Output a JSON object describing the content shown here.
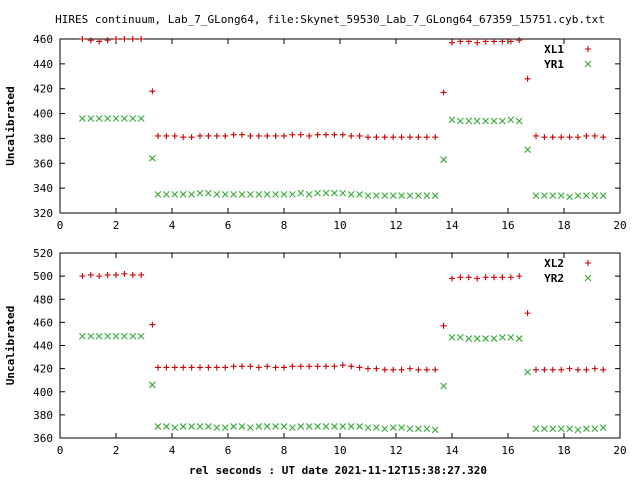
{
  "figure_title": "HIRES continuum, Lab_7_GLong64, file:Skynet_59530_Lab_7_GLong64_67359_15751.cyb.txt",
  "xlabel": "rel seconds : UT date 2021-11-12T15:38:27.320",
  "colors": {
    "series1": "#cc0000",
    "series2": "#33aa33",
    "frame": "#000000"
  },
  "chart_data": [
    {
      "type": "scatter",
      "ylabel": "Uncalibrated",
      "xlim": [
        0,
        20
      ],
      "ylim": [
        320,
        460
      ],
      "xticks": [
        0,
        2,
        4,
        6,
        8,
        10,
        12,
        14,
        16,
        18,
        20
      ],
      "yticks": [
        320,
        340,
        360,
        380,
        400,
        420,
        440,
        460
      ],
      "grid": false,
      "legend_position": "top-right",
      "series": [
        {
          "name": "XL1",
          "marker": "plus",
          "points": [
            [
              0.8,
              460
            ],
            [
              1.1,
              459
            ],
            [
              1.4,
              458
            ],
            [
              1.7,
              459
            ],
            [
              2.0,
              460
            ],
            [
              2.3,
              460
            ],
            [
              2.6,
              460
            ],
            [
              2.9,
              460
            ],
            [
              3.3,
              418
            ],
            [
              3.5,
              382
            ],
            [
              3.8,
              382
            ],
            [
              4.1,
              382
            ],
            [
              4.4,
              381
            ],
            [
              4.7,
              381
            ],
            [
              5.0,
              382
            ],
            [
              5.3,
              382
            ],
            [
              5.6,
              382
            ],
            [
              5.9,
              382
            ],
            [
              6.2,
              383
            ],
            [
              6.5,
              383
            ],
            [
              6.8,
              382
            ],
            [
              7.1,
              382
            ],
            [
              7.4,
              382
            ],
            [
              7.7,
              382
            ],
            [
              8.0,
              382
            ],
            [
              8.3,
              383
            ],
            [
              8.6,
              383
            ],
            [
              8.9,
              382
            ],
            [
              9.2,
              383
            ],
            [
              9.5,
              383
            ],
            [
              9.8,
              383
            ],
            [
              10.1,
              383
            ],
            [
              10.4,
              382
            ],
            [
              10.7,
              382
            ],
            [
              11.0,
              381
            ],
            [
              11.3,
              381
            ],
            [
              11.6,
              381
            ],
            [
              11.9,
              381
            ],
            [
              12.2,
              381
            ],
            [
              12.5,
              381
            ],
            [
              12.8,
              381
            ],
            [
              13.1,
              381
            ],
            [
              13.4,
              381
            ],
            [
              13.7,
              417
            ],
            [
              14.0,
              457
            ],
            [
              14.3,
              458
            ],
            [
              14.6,
              458
            ],
            [
              14.9,
              457
            ],
            [
              15.2,
              458
            ],
            [
              15.5,
              458
            ],
            [
              15.8,
              458
            ],
            [
              16.1,
              458
            ],
            [
              16.4,
              459
            ],
            [
              16.7,
              428
            ],
            [
              17.0,
              382
            ],
            [
              17.3,
              381
            ],
            [
              17.6,
              381
            ],
            [
              17.9,
              381
            ],
            [
              18.2,
              381
            ],
            [
              18.5,
              381
            ],
            [
              18.8,
              382
            ],
            [
              19.1,
              382
            ],
            [
              19.4,
              381
            ]
          ]
        },
        {
          "name": "YR1",
          "marker": "cross",
          "points": [
            [
              0.8,
              396
            ],
            [
              1.1,
              396
            ],
            [
              1.4,
              396
            ],
            [
              1.7,
              396
            ],
            [
              2.0,
              396
            ],
            [
              2.3,
              396
            ],
            [
              2.6,
              396
            ],
            [
              2.9,
              396
            ],
            [
              3.3,
              364
            ],
            [
              3.5,
              335
            ],
            [
              3.8,
              335
            ],
            [
              4.1,
              335
            ],
            [
              4.4,
              335
            ],
            [
              4.7,
              335
            ],
            [
              5.0,
              336
            ],
            [
              5.3,
              336
            ],
            [
              5.6,
              335
            ],
            [
              5.9,
              335
            ],
            [
              6.2,
              335
            ],
            [
              6.5,
              335
            ],
            [
              6.8,
              335
            ],
            [
              7.1,
              335
            ],
            [
              7.4,
              335
            ],
            [
              7.7,
              335
            ],
            [
              8.0,
              335
            ],
            [
              8.3,
              335
            ],
            [
              8.6,
              336
            ],
            [
              8.9,
              335
            ],
            [
              9.2,
              336
            ],
            [
              9.5,
              336
            ],
            [
              9.8,
              336
            ],
            [
              10.1,
              336
            ],
            [
              10.4,
              335
            ],
            [
              10.7,
              335
            ],
            [
              11.0,
              334
            ],
            [
              11.3,
              334
            ],
            [
              11.6,
              334
            ],
            [
              11.9,
              334
            ],
            [
              12.2,
              334
            ],
            [
              12.5,
              334
            ],
            [
              12.8,
              334
            ],
            [
              13.1,
              334
            ],
            [
              13.4,
              334
            ],
            [
              13.7,
              363
            ],
            [
              14.0,
              395
            ],
            [
              14.3,
              394
            ],
            [
              14.6,
              394
            ],
            [
              14.9,
              394
            ],
            [
              15.2,
              394
            ],
            [
              15.5,
              394
            ],
            [
              15.8,
              394
            ],
            [
              16.1,
              395
            ],
            [
              16.4,
              394
            ],
            [
              16.7,
              371
            ],
            [
              17.0,
              334
            ],
            [
              17.3,
              334
            ],
            [
              17.6,
              334
            ],
            [
              17.9,
              334
            ],
            [
              18.2,
              333
            ],
            [
              18.5,
              334
            ],
            [
              18.8,
              334
            ],
            [
              19.1,
              334
            ],
            [
              19.4,
              334
            ]
          ]
        }
      ]
    },
    {
      "type": "scatter",
      "ylabel": "Uncalibrated",
      "xlim": [
        0,
        20
      ],
      "ylim": [
        360,
        520
      ],
      "xticks": [
        0,
        2,
        4,
        6,
        8,
        10,
        12,
        14,
        16,
        18,
        20
      ],
      "yticks": [
        360,
        380,
        400,
        420,
        440,
        460,
        480,
        500,
        520
      ],
      "grid": false,
      "legend_position": "top-right",
      "series": [
        {
          "name": "XL2",
          "marker": "plus",
          "points": [
            [
              0.8,
              500
            ],
            [
              1.1,
              501
            ],
            [
              1.4,
              500
            ],
            [
              1.7,
              501
            ],
            [
              2.0,
              501
            ],
            [
              2.3,
              502
            ],
            [
              2.6,
              501
            ],
            [
              2.9,
              501
            ],
            [
              3.3,
              458
            ],
            [
              3.5,
              421
            ],
            [
              3.8,
              421
            ],
            [
              4.1,
              421
            ],
            [
              4.4,
              421
            ],
            [
              4.7,
              421
            ],
            [
              5.0,
              421
            ],
            [
              5.3,
              421
            ],
            [
              5.6,
              421
            ],
            [
              5.9,
              421
            ],
            [
              6.2,
              422
            ],
            [
              6.5,
              422
            ],
            [
              6.8,
              422
            ],
            [
              7.1,
              421
            ],
            [
              7.4,
              422
            ],
            [
              7.7,
              421
            ],
            [
              8.0,
              421
            ],
            [
              8.3,
              422
            ],
            [
              8.6,
              422
            ],
            [
              8.9,
              422
            ],
            [
              9.2,
              422
            ],
            [
              9.5,
              422
            ],
            [
              9.8,
              422
            ],
            [
              10.1,
              423
            ],
            [
              10.4,
              422
            ],
            [
              10.7,
              421
            ],
            [
              11.0,
              420
            ],
            [
              11.3,
              420
            ],
            [
              11.6,
              419
            ],
            [
              11.9,
              419
            ],
            [
              12.2,
              419
            ],
            [
              12.5,
              420
            ],
            [
              12.8,
              419
            ],
            [
              13.1,
              419
            ],
            [
              13.4,
              419
            ],
            [
              13.7,
              457
            ],
            [
              14.0,
              498
            ],
            [
              14.3,
              499
            ],
            [
              14.6,
              499
            ],
            [
              14.9,
              498
            ],
            [
              15.2,
              499
            ],
            [
              15.5,
              499
            ],
            [
              15.8,
              499
            ],
            [
              16.1,
              499
            ],
            [
              16.4,
              500
            ],
            [
              16.7,
              468
            ],
            [
              17.0,
              419
            ],
            [
              17.3,
              419
            ],
            [
              17.6,
              419
            ],
            [
              17.9,
              419
            ],
            [
              18.2,
              420
            ],
            [
              18.5,
              419
            ],
            [
              18.8,
              419
            ],
            [
              19.1,
              420
            ],
            [
              19.4,
              419
            ]
          ]
        },
        {
          "name": "YR2",
          "marker": "cross",
          "points": [
            [
              0.8,
              448
            ],
            [
              1.1,
              448
            ],
            [
              1.4,
              448
            ],
            [
              1.7,
              448
            ],
            [
              2.0,
              448
            ],
            [
              2.3,
              448
            ],
            [
              2.6,
              448
            ],
            [
              2.9,
              448
            ],
            [
              3.3,
              406
            ],
            [
              3.5,
              370
            ],
            [
              3.8,
              370
            ],
            [
              4.1,
              369
            ],
            [
              4.4,
              370
            ],
            [
              4.7,
              370
            ],
            [
              5.0,
              370
            ],
            [
              5.3,
              370
            ],
            [
              5.6,
              369
            ],
            [
              5.9,
              369
            ],
            [
              6.2,
              370
            ],
            [
              6.5,
              370
            ],
            [
              6.8,
              369
            ],
            [
              7.1,
              370
            ],
            [
              7.4,
              370
            ],
            [
              7.7,
              370
            ],
            [
              8.0,
              370
            ],
            [
              8.3,
              369
            ],
            [
              8.6,
              370
            ],
            [
              8.9,
              370
            ],
            [
              9.2,
              370
            ],
            [
              9.5,
              370
            ],
            [
              9.8,
              370
            ],
            [
              10.1,
              370
            ],
            [
              10.4,
              370
            ],
            [
              10.7,
              370
            ],
            [
              11.0,
              369
            ],
            [
              11.3,
              369
            ],
            [
              11.6,
              368
            ],
            [
              11.9,
              369
            ],
            [
              12.2,
              369
            ],
            [
              12.5,
              368
            ],
            [
              12.8,
              368
            ],
            [
              13.1,
              368
            ],
            [
              13.4,
              367
            ],
            [
              13.7,
              405
            ],
            [
              14.0,
              447
            ],
            [
              14.3,
              447
            ],
            [
              14.6,
              446
            ],
            [
              14.9,
              446
            ],
            [
              15.2,
              446
            ],
            [
              15.5,
              446
            ],
            [
              15.8,
              447
            ],
            [
              16.1,
              447
            ],
            [
              16.4,
              446
            ],
            [
              16.7,
              417
            ],
            [
              17.0,
              368
            ],
            [
              17.3,
              368
            ],
            [
              17.6,
              368
            ],
            [
              17.9,
              368
            ],
            [
              18.2,
              368
            ],
            [
              18.5,
              367
            ],
            [
              18.8,
              368
            ],
            [
              19.1,
              368
            ],
            [
              19.4,
              369
            ]
          ]
        }
      ]
    }
  ]
}
